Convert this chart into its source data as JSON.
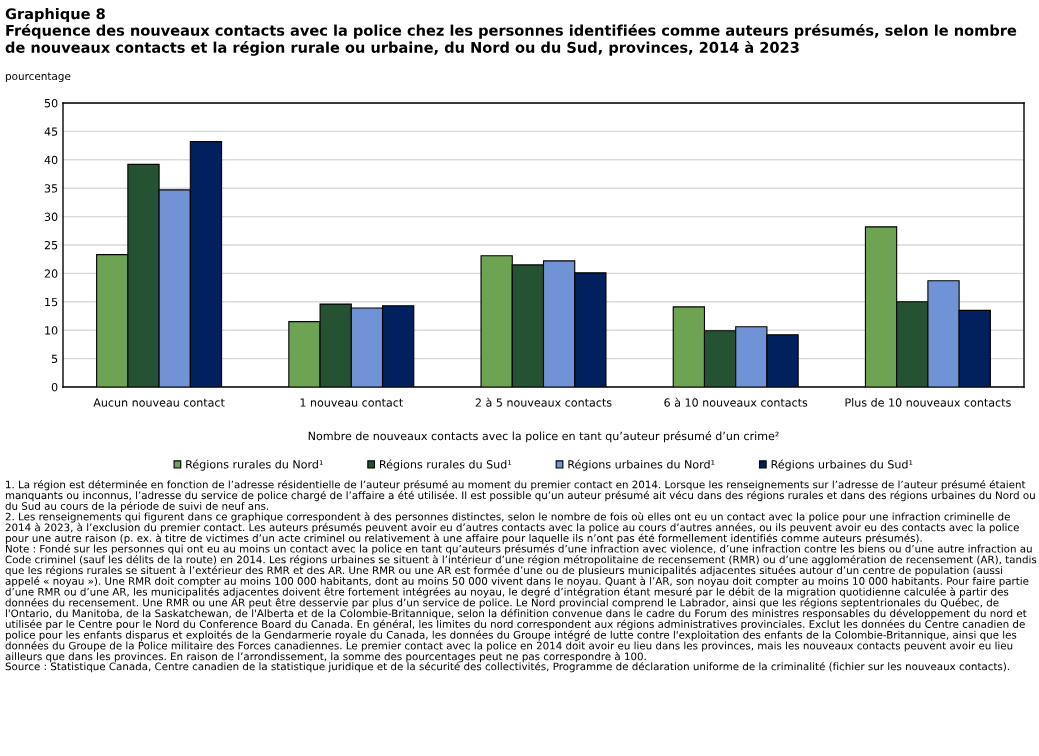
{
  "chart_data": {
    "type": "bar",
    "title": "Graphique 8",
    "subtitle": "Fréquence des nouveaux contacts avec la police chez les personnes identifiées comme auteurs présumés, selon le nombre de nouveaux contacts et la région rurale ou urbaine, du Nord ou du Sud, provinces, 2014 à 2023",
    "ylabel": "pourcentage",
    "xlabel": "Nombre de nouveaux contacts avec la police en tant qu’auteur présumé d’un crime²",
    "categories": [
      "Aucun nouveau contact",
      "1 nouveau contact",
      "2 à 5 nouveaux contacts",
      "6 à 10 nouveaux contacts",
      "Plus de 10 nouveaux contacts"
    ],
    "series": [
      {
        "name": "Régions rurales du Nord¹",
        "color": "#6ea354",
        "values": [
          23.3,
          11.5,
          23.1,
          14.1,
          28.2
        ]
      },
      {
        "name": "Régions rurales du Sud¹",
        "color": "#245233",
        "values": [
          39.2,
          14.6,
          21.5,
          9.9,
          15.0
        ]
      },
      {
        "name": "Régions urbaines du Nord¹",
        "color": "#7093d6",
        "values": [
          34.7,
          13.9,
          22.2,
          10.6,
          18.7
        ]
      },
      {
        "name": "Régions urbaines du Sud¹",
        "color": "#00205e",
        "values": [
          43.2,
          14.3,
          20.1,
          9.2,
          13.5
        ]
      }
    ],
    "ylim": [
      0,
      50
    ],
    "yticks": [
      0,
      5,
      10,
      15,
      20,
      25,
      30,
      35,
      40,
      45,
      50
    ],
    "grid": "y",
    "legend": "bottom",
    "annotations": [
      "1. La région est déterminée en fonction de l’adresse résidentielle de l’auteur présumé au moment du premier contact en 2014. Lorsque les renseignements sur l’adresse de l’auteur présumé étaient manquants ou inconnus, l’adresse du service de police chargé de l’affaire a été utilisée. Il est possible qu’un auteur présumé ait vécu dans des régions rurales et dans des régions urbaines du Nord ou du Sud au cours de la période de suivi de neuf ans.",
      "2. Les renseignements qui figurent dans ce graphique correspondent à des personnes distinctes, selon le nombre de fois où elles ont eu un contact avec la police pour une infraction criminelle de 2014 à 2023, à l’exclusion du premier contact. Les auteurs présumés peuvent avoir eu d’autres contacts avec la police au cours d’autres années, ou ils peuvent avoir eu des contacts avec la police pour une autre raison (p. ex. à titre de victimes d’un acte criminel ou relativement à une affaire pour laquelle ils n’ont pas été formellement identifiés comme auteurs présumés).",
      "Note : Fondé sur les personnes qui ont eu au moins un contact avec la police en tant qu’auteurs présumés d’une infraction avec violence, d’une infraction contre les biens ou d’une autre infraction au Code criminel (sauf les délits de la route) en 2014. Les régions urbaines se situent à l’intérieur d’une région métropolitaine de recensement (RMR) ou d’une agglomération de recensement (AR), tandis que les régions rurales se situent à l’extérieur des RMR et des AR. Une RMR ou une AR est formée d’une ou de plusieurs municipalités adjacentes situées autour d’un centre de population (aussi appelé « noyau »). Une RMR doit compter au moins 100 000 habitants, dont au moins 50 000 vivent dans le noyau. Quant à l’AR, son noyau doit compter au moins 10 000 habitants. Pour faire partie d’une RMR ou d’une AR, les municipalités adjacentes doivent être fortement intégrées au noyau, le degré d’intégration étant mesuré par le débit de la migration quotidienne calculée à partir des données du recensement. Une RMR ou une AR peut être desservie par plus d’un service de police. Le Nord provincial comprend le Labrador, ainsi que les régions septentrionales du Québec, de l'Ontario, du Manitoba, de la Saskatchewan, de l'Alberta et de la Colombie-Britannique, selon la définition convenue dans le cadre du Forum des ministres responsables du développement du nord et utilisée par le Centre pour le Nord du Conference Board du Canada. En général, les limites du nord correspondent aux régions administratives provinciales. Exclut les données du Centre canadien de police pour les enfants disparus et exploités de la Gendarmerie royale du Canada, les données du Groupe intégré de lutte contre l'exploitation des enfants de la Colombie-Britannique, ainsi que les données du Groupe de la Police militaire des Forces canadiennes. Le premier contact avec la police en 2014 doit avoir eu lieu dans les provinces, mais les nouveaux contacts peuvent avoir eu lieu ailleurs que dans les provinces. En raison de l’arrondissement, la somme des pourcentages peut ne pas correspondre à 100.",
      "Source : Statistique Canada, Centre canadien de la statistique juridique et de la sécurité des collectivités, Programme de déclaration uniforme de la criminalité (fichier sur les nouveaux contacts)."
    ]
  }
}
